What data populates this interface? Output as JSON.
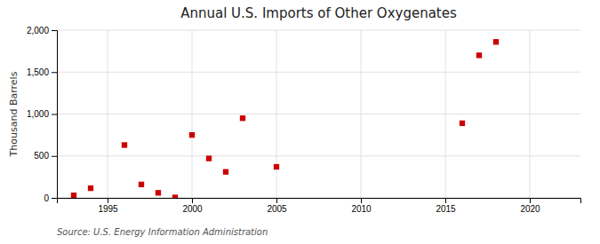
{
  "chart_data": {
    "type": "scatter",
    "title": "Annual U.S. Imports of Other Oxygenates",
    "y_label": "Thousand Barrels",
    "annotations": [
      "Source: U.S. Energy Information Administration"
    ],
    "x": [
      1993,
      1994,
      1996,
      1997,
      1998,
      1999,
      2000,
      2001,
      2002,
      2003,
      2005,
      2016,
      2017,
      2018
    ],
    "values": [
      30,
      115,
      630,
      160,
      60,
      5,
      750,
      470,
      310,
      950,
      370,
      890,
      1700,
      1860
    ],
    "color": "#cc0000",
    "marker": "square",
    "xlim": [
      1992,
      2023
    ],
    "ylim": [
      0,
      2000
    ],
    "xticks": [
      1995,
      2000,
      2005,
      2010,
      2015,
      2020
    ],
    "yticks": [
      0,
      500,
      {
        "value": 1000,
        "label": "1,000"
      },
      {
        "value": 1500,
        "label": "1,500"
      },
      {
        "value": 2000,
        "label": "2,000"
      }
    ],
    "grid": true
  }
}
